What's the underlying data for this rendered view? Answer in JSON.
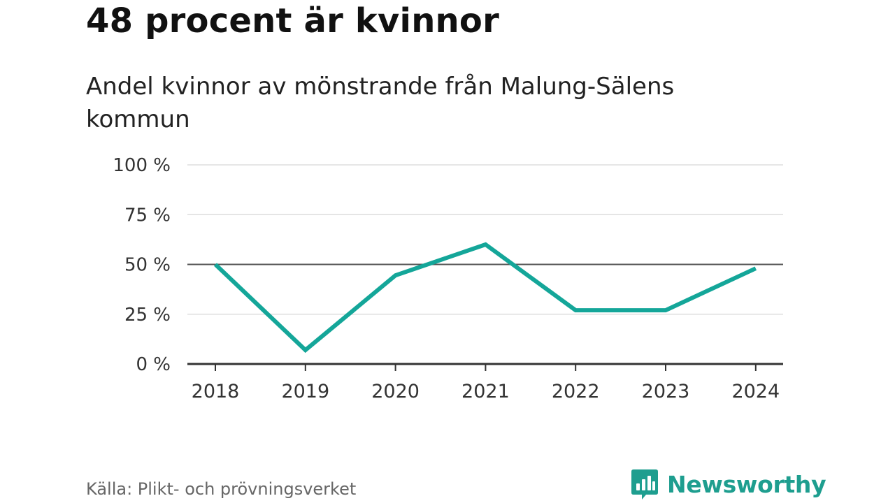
{
  "header": {
    "title": "48 procent är kvinnor",
    "subtitle": "Andel kvinnor av mönstrande från Malung-Sälens kommun"
  },
  "footer": {
    "source": "Källa: Plikt- och prövningsverket",
    "brand": "Newsworthy",
    "brand_icon": "bar-chart-speech-bubble-icon"
  },
  "colors": {
    "line": "#14A699",
    "brand": "#1E9E8F",
    "grid": "#DDDDDD",
    "reference_line": "#555555",
    "axis": "#333333"
  },
  "chart_data": {
    "type": "line",
    "title": "48 procent är kvinnor",
    "subtitle": "Andel kvinnor av mönstrande från Malung-Sälens kommun",
    "xlabel": "",
    "ylabel": "",
    "categories": [
      "2018",
      "2019",
      "2020",
      "2021",
      "2022",
      "2023",
      "2024"
    ],
    "series": [
      {
        "values": [
          50,
          7,
          44.5,
          60,
          27,
          27,
          48
        ]
      }
    ],
    "ylim": [
      0,
      100
    ],
    "yticks": [
      0,
      25,
      50,
      75,
      100
    ],
    "ytick_labels": [
      "0 %",
      "25 %",
      "50 %",
      "75 %",
      "100 %"
    ],
    "reference_line": 50,
    "grid": true,
    "legend": "none"
  }
}
